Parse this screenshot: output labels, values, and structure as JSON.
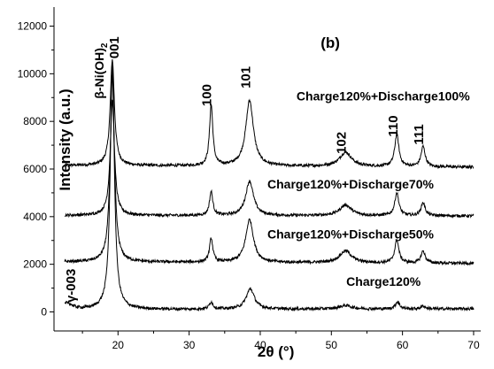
{
  "chart_data": {
    "type": "line",
    "panel_label": "(b)",
    "xlabel_symbol": "2θ",
    "xlabel_unit": "(°)",
    "ylabel": "Intensity (a.u.)",
    "xlim": [
      11,
      71
    ],
    "ylim": [
      -800,
      12800
    ],
    "x_ticks": [
      20,
      30,
      40,
      50,
      60,
      70
    ],
    "y_ticks": [
      0,
      2000,
      4000,
      6000,
      8000,
      10000,
      12000
    ],
    "grid": false,
    "phase_label": "β-Ni(OH)",
    "phase_label_subscript": "2",
    "peak_labels": [
      {
        "text": "001",
        "x": 20.1,
        "y": 11100
      },
      {
        "text": "100",
        "x": 33.1,
        "y": 9100
      },
      {
        "text": "101",
        "x": 38.6,
        "y": 9850
      },
      {
        "text": "102",
        "x": 52.0,
        "y": 7100
      },
      {
        "text": "110",
        "x": 59.3,
        "y": 7800
      },
      {
        "text": "111",
        "x": 62.9,
        "y": 7450
      },
      {
        "text": "γ-003",
        "x": 14.0,
        "y": 1100
      }
    ],
    "series": [
      {
        "name": "Charge120%+Discharge100%",
        "label_position": [
          45.1,
          8880
        ],
        "baseline_start": 6150,
        "baseline_end": 6080,
        "peaks": [
          [
            19.2,
            4450,
            0.35
          ],
          [
            33.1,
            2550,
            0.28
          ],
          [
            38.5,
            2750,
            0.65
          ],
          [
            52.0,
            600,
            1.0
          ],
          [
            59.2,
            1350,
            0.35
          ],
          [
            62.9,
            850,
            0.35
          ]
        ]
      },
      {
        "name": "Charge120%+Discharge70%",
        "label_position": [
          41.0,
          5180
        ],
        "baseline_start": 4050,
        "baseline_end": 4030,
        "peaks": [
          [
            19.2,
            4800,
            0.35
          ],
          [
            33.1,
            1000,
            0.28
          ],
          [
            38.5,
            1450,
            0.65
          ],
          [
            52.0,
            450,
            1.0
          ],
          [
            59.2,
            950,
            0.35
          ],
          [
            62.9,
            550,
            0.35
          ]
        ]
      },
      {
        "name": "Charge120%+Discharge50%",
        "label_position": [
          41.0,
          3080
        ],
        "baseline_start": 2100,
        "baseline_end": 2040,
        "peaks": [
          [
            19.2,
            7850,
            0.35
          ],
          [
            33.1,
            1000,
            0.28
          ],
          [
            38.5,
            1800,
            0.65
          ],
          [
            52.0,
            500,
            1.0
          ],
          [
            59.2,
            950,
            0.35
          ],
          [
            62.9,
            500,
            0.35
          ]
        ]
      },
      {
        "name": "Charge120%",
        "label_position": [
          52.1,
          1090
        ],
        "baseline_start": 100,
        "baseline_end": 130,
        "peaks": [
          [
            12.9,
            250,
            0.8
          ],
          [
            19.2,
            10300,
            0.35
          ],
          [
            33.1,
            300,
            0.3
          ],
          [
            38.6,
            850,
            0.7
          ],
          [
            52.0,
            150,
            1.0
          ],
          [
            59.3,
            300,
            0.35
          ],
          [
            62.9,
            120,
            0.35
          ]
        ]
      }
    ]
  }
}
